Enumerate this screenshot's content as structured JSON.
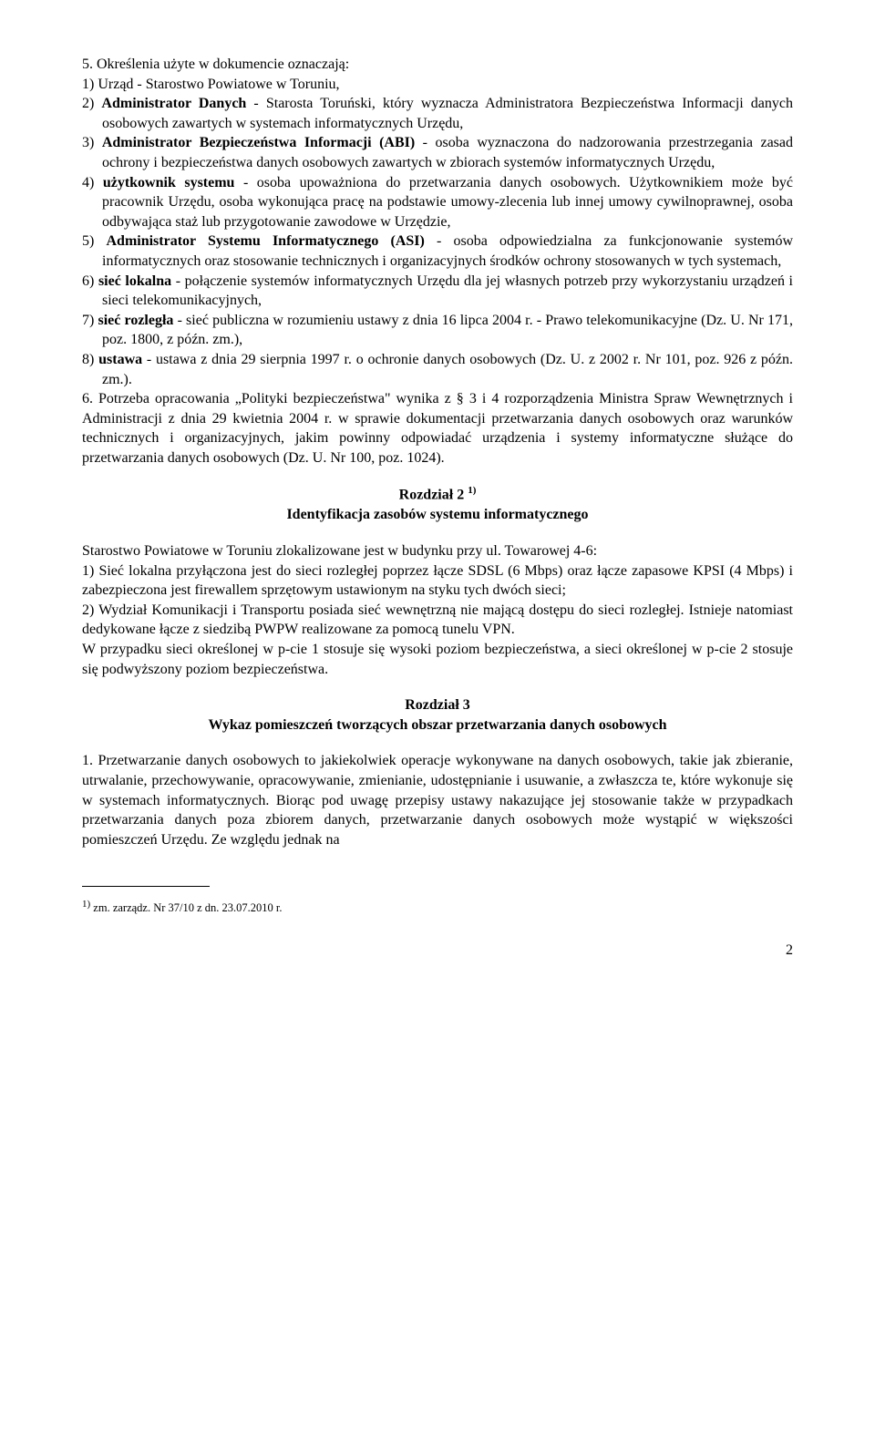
{
  "section5": {
    "intro": "5. Określenia użyte w dokumencie oznaczają:",
    "item1": "1) Urząd - Starostwo Powiatowe w Toruniu,",
    "item2_a": "2) ",
    "item2_b": "Administrator Danych",
    "item2_c": " - Starosta Toruński, który wyznacza Administratora Bezpieczeństwa Informacji danych osobowych zawartych w systemach informatycznych Urzędu,",
    "item3_a": "3) ",
    "item3_b": "Administrator Bezpieczeństwa Informacji (ABI)",
    "item3_c": " - osoba wyznaczona do nadzorowania przestrzegania zasad ochrony i bezpieczeństwa danych osobowych zawartych w zbiorach systemów informatycznych Urzędu,",
    "item4_a": "4) ",
    "item4_b": "użytkownik systemu",
    "item4_c": " - osoba upoważniona do przetwarzania danych osobowych. Użytkownikiem może być pracownik Urzędu, osoba wykonująca pracę na podstawie umowy-zlecenia lub innej umowy cywilnoprawnej, osoba odbywająca staż lub przygotowanie zawodowe w Urzędzie,",
    "item5_a": "5) ",
    "item5_b": "Administrator Systemu Informatycznego (ASI)",
    "item5_c": " - osoba odpowiedzialna za funkcjonowanie systemów informatycznych oraz stosowanie technicznych i organizacyjnych środków ochrony stosowanych w tych systemach,",
    "item6_a": "6) ",
    "item6_b": "sieć lokalna",
    "item6_c": " - połączenie systemów informatycznych Urzędu dla jej własnych potrzeb przy wykorzystaniu urządzeń i sieci telekomunikacyjnych,",
    "item7_a": "7) ",
    "item7_b": "sieć rozległa",
    "item7_c": " - sieć publiczna w rozumieniu ustawy z dnia 16 lipca 2004 r. - Prawo telekomunikacyjne (Dz. U. Nr 171, poz. 1800, z późn. zm.),",
    "item8_a": "8) ",
    "item8_b": "ustawa",
    "item8_c": " - ustawa z dnia 29 sierpnia 1997 r. o ochronie danych osobowych (Dz. U. z 2002 r. Nr 101, poz. 926 z późn. zm.)."
  },
  "section6": "6. Potrzeba opracowania „Polityki bezpieczeństwa\" wynika z § 3 i 4 rozporządzenia Ministra Spraw Wewnętrznych i Administracji z dnia 29 kwietnia 2004 r. w sprawie dokumentacji przetwarzania danych osobowych oraz warunków technicznych i organizacyjnych, jakim powinny odpowiadać urządzenia i systemy informatyczne służące do przetwarzania danych osobowych (Dz. U. Nr 100, poz. 1024).",
  "chapter2": {
    "title_a": "Rozdział 2 ",
    "sup": "1)",
    "subtitle": "Identyfikacja zasobów systemu informatycznego",
    "p1": "Starostwo Powiatowe w Toruniu zlokalizowane jest w budynku przy ul. Towarowej 4-6:",
    "i1": "1) Sieć lokalna przyłączona jest do sieci rozległej poprzez łącze SDSL (6 Mbps) oraz łącze zapasowe KPSI (4 Mbps) i zabezpieczona jest firewallem sprzętowym ustawionym na styku tych dwóch sieci;",
    "i2": "2) Wydział Komunikacji i Transportu posiada sieć wewnętrzną nie mającą dostępu do sieci rozległej. Istnieje natomiast dedykowane łącze z siedzibą PWPW realizowane za pomocą tunelu VPN.",
    "p2": "W przypadku sieci określonej w p-cie 1 stosuje się wysoki poziom bezpieczeństwa, a sieci określonej w p-cie 2 stosuje się podwyższony poziom bezpieczeństwa."
  },
  "chapter3": {
    "title": "Rozdział 3",
    "subtitle": "Wykaz pomieszczeń tworzących obszar przetwarzania danych osobowych",
    "p1": "1. Przetwarzanie danych osobowych to jakiekolwiek operacje wykonywane na danych osobowych, takie jak zbieranie, utrwalanie, przechowywanie, opracowywanie, zmienianie, udostępnianie i usuwanie, a zwłaszcza te, które wykonuje się w systemach informatycznych. Biorąc pod uwagę przepisy ustawy nakazujące jej stosowanie także w przypadkach przetwarzania danych poza zbiorem danych, przetwarzanie danych osobowych może wystąpić w większości pomieszczeń Urzędu. Ze względu jednak na"
  },
  "footnote": {
    "sup": "1)",
    "text": " zm. zarządz. Nr 37/10 z dn. 23.07.2010 r."
  },
  "pagenum": "2"
}
